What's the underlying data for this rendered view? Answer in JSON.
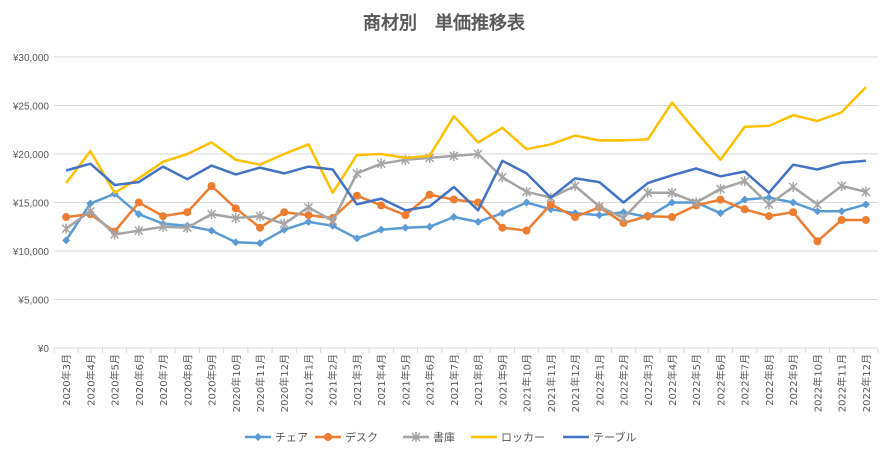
{
  "chart_data": {
    "type": "line",
    "title": "商材別　単価推移表",
    "xlabel": "",
    "ylabel": "",
    "ylim": [
      0,
      30000
    ],
    "yticks": [
      0,
      5000,
      10000,
      15000,
      20000,
      25000,
      30000
    ],
    "ytick_labels": [
      "¥0",
      "¥5,000",
      "¥10,000",
      "¥15,000",
      "¥20,000",
      "¥25,000",
      "¥30,000"
    ],
    "grid": true,
    "legend_position": "bottom",
    "categories": [
      "2020年3月",
      "2020年4月",
      "2020年5月",
      "2020年6月",
      "2020年7月",
      "2020年8月",
      "2020年9月",
      "2020年10月",
      "2020年11月",
      "2020年12月",
      "2021年1月",
      "2021年2月",
      "2021年3月",
      "2021年4月",
      "2021年5月",
      "2021年6月",
      "2021年7月",
      "2021年8月",
      "2021年9月",
      "2021年10月",
      "2021年11月",
      "2021年12月",
      "2022年1月",
      "2022年2月",
      "2022年3月",
      "2022年4月",
      "2022年5月",
      "2022年6月",
      "2022年7月",
      "2022年8月",
      "2022年9月",
      "2022年10月",
      "2022年11月",
      "2022年12月"
    ],
    "series": [
      {
        "name": "チェア",
        "color": "#5b9bd5",
        "marker": "diamond",
        "values": [
          11100,
          14900,
          15900,
          13800,
          12800,
          12600,
          12100,
          10900,
          10800,
          12200,
          13000,
          12600,
          11300,
          12200,
          12400,
          12500,
          13500,
          13000,
          13900,
          15000,
          14300,
          13900,
          13700,
          14000,
          13500,
          15000,
          15000,
          13900,
          15300,
          15500,
          15000,
          14100,
          14100,
          14800
        ]
      },
      {
        "name": "デスク",
        "color": "#ed7d31",
        "marker": "circle",
        "values": [
          13500,
          13800,
          12000,
          15000,
          13600,
          14000,
          16700,
          14400,
          12400,
          14000,
          13700,
          13400,
          15700,
          14700,
          13700,
          15800,
          15300,
          15000,
          12400,
          12100,
          14800,
          13500,
          14500,
          12900,
          13600,
          13500,
          14700,
          15300,
          14300,
          13600,
          14000,
          11000,
          13200,
          13200
        ]
      },
      {
        "name": "書庫",
        "color": "#a5a5a5",
        "marker": "x",
        "values": [
          12300,
          14100,
          11700,
          12100,
          12500,
          12400,
          13800,
          13400,
          13600,
          12800,
          14500,
          13100,
          18000,
          19000,
          19400,
          19600,
          19800,
          20000,
          17600,
          16100,
          15500,
          16700,
          14600,
          13400,
          16000,
          16000,
          15000,
          16400,
          17200,
          14800,
          16600,
          14800,
          16700,
          16100
        ]
      },
      {
        "name": "ロッカー",
        "color": "#ffc000",
        "marker": "none",
        "values": [
          17000,
          20300,
          16000,
          17500,
          19200,
          20000,
          21200,
          19400,
          18900,
          20000,
          21000,
          16000,
          19900,
          20000,
          19600,
          19800,
          23900,
          21200,
          22700,
          20500,
          21000,
          21900,
          21400,
          21400,
          21500,
          25300,
          22300,
          19400,
          22800,
          22900,
          24000,
          23400,
          24300,
          26900
        ]
      },
      {
        "name": "テーブル",
        "color": "#4472c4",
        "marker": "none",
        "values": [
          18300,
          19000,
          16800,
          17100,
          18700,
          17400,
          18800,
          17900,
          18600,
          18000,
          18700,
          18400,
          14800,
          15400,
          14200,
          14600,
          16600,
          14200,
          19300,
          18000,
          15500,
          17500,
          17100,
          15000,
          17000,
          17800,
          18500,
          17700,
          18200,
          16000,
          18900,
          18400,
          19100,
          19300
        ]
      }
    ]
  }
}
